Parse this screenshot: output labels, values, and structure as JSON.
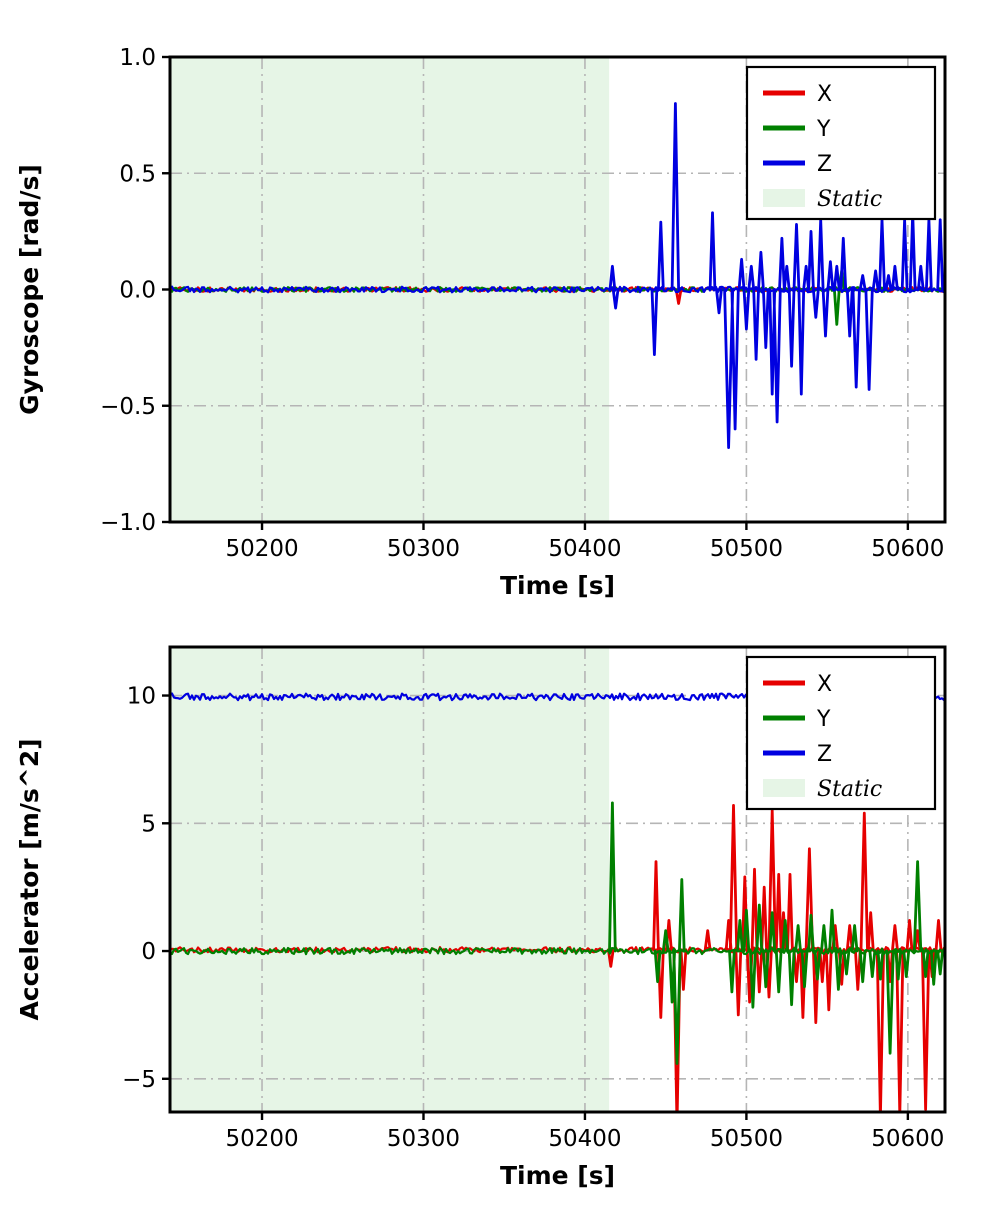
{
  "figure": {
    "background": "#ffffff"
  },
  "chart_data": [
    {
      "id": "gyroscope",
      "type": "line",
      "title": "",
      "xlabel": "Time [s]",
      "ylabel": "Gyroscope [rad/s]",
      "xlim": [
        50143,
        50623
      ],
      "ylim": [
        -1.0,
        1.0
      ],
      "xticks": [
        50200,
        50300,
        50400,
        50500,
        50600
      ],
      "xtick_labels": [
        "50200",
        "50300",
        "50400",
        "50500",
        "50600"
      ],
      "yticks": [
        -1.0,
        -0.5,
        0.0,
        0.5,
        1.0
      ],
      "ytick_labels": [
        "−1.0",
        "−0.5",
        "0.0",
        "0.5",
        "1.0"
      ],
      "grid": true,
      "grid_color": "#b5b5b5",
      "frame_color": "#000000",
      "static_region": {
        "label": "Static",
        "x0": 50143,
        "x1": 50415,
        "color": "#e6f5e6"
      },
      "legend": {
        "position": "upper-right",
        "items": [
          {
            "label": "X",
            "type": "line",
            "color": "#e60000"
          },
          {
            "label": "Y",
            "type": "line",
            "color": "#008000"
          },
          {
            "label": "Z",
            "type": "line",
            "color": "#0000e0"
          },
          {
            "label": "Static",
            "type": "patch",
            "color": "#e6f5e6",
            "italic": true
          }
        ]
      },
      "series": [
        {
          "name": "X",
          "color": "#e60000",
          "baseline": 0.0,
          "noise": 0.01,
          "spikes": [
            [
              50458,
              -0.06
            ]
          ]
        },
        {
          "name": "Y",
          "color": "#008000",
          "baseline": 0.0,
          "noise": 0.01,
          "spikes": [
            [
              50556,
              -0.15
            ],
            [
              50559,
              0.08
            ]
          ]
        },
        {
          "name": "Z",
          "color": "#0000e0",
          "baseline": 0.0,
          "noise": 0.012,
          "spikes": [
            [
              50417,
              0.1
            ],
            [
              50419,
              -0.08
            ],
            [
              50443,
              -0.28
            ],
            [
              50447,
              0.29
            ],
            [
              50456,
              0.8,
              2
            ],
            [
              50479,
              0.33
            ],
            [
              50483,
              -0.1
            ],
            [
              50489,
              -0.68,
              2.5
            ],
            [
              50493,
              -0.6,
              2
            ],
            [
              50497,
              0.13
            ],
            [
              50500,
              -0.17
            ],
            [
              50503,
              0.1
            ],
            [
              50506,
              -0.3
            ],
            [
              50509,
              0.16
            ],
            [
              50512,
              -0.25
            ],
            [
              50516,
              -0.45
            ],
            [
              50519,
              -0.57,
              2
            ],
            [
              50522,
              0.22
            ],
            [
              50525,
              0.1
            ],
            [
              50528,
              -0.33
            ],
            [
              50531,
              0.28
            ],
            [
              50534,
              -0.45
            ],
            [
              50537,
              0.1
            ],
            [
              50540,
              0.25
            ],
            [
              50543,
              -0.12
            ],
            [
              50546,
              0.3
            ],
            [
              50549,
              -0.2
            ],
            [
              50552,
              0.12
            ],
            [
              50556,
              0.1
            ],
            [
              50560,
              0.22
            ],
            [
              50564,
              -0.2
            ],
            [
              50568,
              -0.42,
              2
            ],
            [
              50572,
              0.06
            ],
            [
              50576,
              -0.43,
              2
            ],
            [
              50580,
              0.08
            ],
            [
              50584,
              0.3
            ],
            [
              50588,
              0.06
            ],
            [
              50592,
              0.1
            ],
            [
              50598,
              0.3
            ],
            [
              50603,
              0.33
            ],
            [
              50608,
              0.1
            ],
            [
              50613,
              0.3
            ],
            [
              50620,
              0.3
            ]
          ]
        }
      ]
    },
    {
      "id": "accelerator",
      "type": "line",
      "title": "",
      "xlabel": "Time [s]",
      "ylabel": "Accelerator [m/s^2]",
      "xlim": [
        50143,
        50623
      ],
      "ylim": [
        -6.3,
        11.9
      ],
      "xticks": [
        50200,
        50300,
        50400,
        50500,
        50600
      ],
      "xtick_labels": [
        "50200",
        "50300",
        "50400",
        "50500",
        "50600"
      ],
      "yticks": [
        -5,
        0,
        5,
        10
      ],
      "ytick_labels": [
        "−5",
        "0",
        "5",
        "10"
      ],
      "grid": true,
      "grid_color": "#b5b5b5",
      "frame_color": "#000000",
      "static_region": {
        "label": "Static",
        "x0": 50143,
        "x1": 50415,
        "color": "#e6f5e6"
      },
      "legend": {
        "position": "upper-right",
        "items": [
          {
            "label": "X",
            "type": "line",
            "color": "#e60000"
          },
          {
            "label": "Y",
            "type": "line",
            "color": "#008000"
          },
          {
            "label": "Z",
            "type": "line",
            "color": "#0000e0"
          },
          {
            "label": "Static",
            "type": "patch",
            "color": "#e6f5e6",
            "italic": true
          }
        ]
      },
      "series": [
        {
          "name": "X",
          "color": "#e60000",
          "baseline": 0.05,
          "noise": 0.1,
          "spikes": [
            [
              50416,
              -0.6
            ],
            [
              50444,
              3.5
            ],
            [
              50447,
              -2.6
            ],
            [
              50452,
              1.2
            ],
            [
              50457,
              -6.8,
              2
            ],
            [
              50461,
              -1.5
            ],
            [
              50476,
              0.8
            ],
            [
              50489,
              1.2
            ],
            [
              50492,
              5.7,
              2
            ],
            [
              50495,
              -2.5
            ],
            [
              50499,
              2.9
            ],
            [
              50502,
              -2.0
            ],
            [
              50505,
              3.2
            ],
            [
              50508,
              -1.6
            ],
            [
              50511,
              2.5
            ],
            [
              50514,
              -1.8
            ],
            [
              50516,
              5.5,
              2
            ],
            [
              50520,
              3.0
            ],
            [
              50523,
              1.5
            ],
            [
              50527,
              3.0
            ],
            [
              50531,
              -1.2
            ],
            [
              50535,
              -2.6
            ],
            [
              50539,
              4.0,
              2
            ],
            [
              50543,
              -2.8
            ],
            [
              50547,
              -1.2
            ],
            [
              50551,
              -2.3
            ],
            [
              50555,
              1.0
            ],
            [
              50559,
              -1.3
            ],
            [
              50564,
              1.0
            ],
            [
              50569,
              -1.5
            ],
            [
              50573,
              5.4,
              2
            ],
            [
              50577,
              1.5
            ],
            [
              50583,
              -6.5,
              2
            ],
            [
              50589,
              -1.2
            ],
            [
              50592,
              1.0
            ],
            [
              50595,
              -6.4,
              2
            ],
            [
              50601,
              1.2
            ],
            [
              50606,
              0.8
            ],
            [
              50611,
              -6.2,
              2
            ],
            [
              50615,
              -1.0
            ],
            [
              50619,
              1.2
            ]
          ]
        },
        {
          "name": "Y",
          "color": "#008000",
          "baseline": 0.0,
          "noise": 0.12,
          "spikes": [
            [
              50417,
              5.8,
              1.8
            ],
            [
              50445,
              -1.2
            ],
            [
              50450,
              0.8
            ],
            [
              50454,
              -2.0
            ],
            [
              50457,
              -4.4,
              2
            ],
            [
              50460,
              2.8
            ],
            [
              50491,
              -1.6
            ],
            [
              50496,
              1.2
            ],
            [
              50500,
              1.6
            ],
            [
              50504,
              -2.2
            ],
            [
              50508,
              1.8
            ],
            [
              50512,
              -1.4
            ],
            [
              50516,
              1.5
            ],
            [
              50520,
              -1.6
            ],
            [
              50524,
              1.2
            ],
            [
              50528,
              -2.1
            ],
            [
              50532,
              1.0
            ],
            [
              50536,
              -1.4
            ],
            [
              50540,
              1.4
            ],
            [
              50544,
              -1.1
            ],
            [
              50548,
              1.0
            ],
            [
              50553,
              1.6
            ],
            [
              50557,
              -1.5
            ],
            [
              50562,
              -0.9
            ],
            [
              50567,
              1.0
            ],
            [
              50572,
              -1.2
            ],
            [
              50578,
              -1.0
            ],
            [
              50583,
              -1.1
            ],
            [
              50589,
              -4.0,
              2
            ],
            [
              50594,
              -1.1
            ],
            [
              50599,
              -1.0
            ],
            [
              50606,
              3.5,
              2
            ],
            [
              50611,
              -1.0
            ],
            [
              50616,
              -1.3
            ],
            [
              50620,
              -0.9
            ]
          ]
        },
        {
          "name": "Z",
          "color": "#0000e0",
          "baseline": 9.95,
          "noise": 0.13,
          "spikes": []
        }
      ]
    }
  ]
}
